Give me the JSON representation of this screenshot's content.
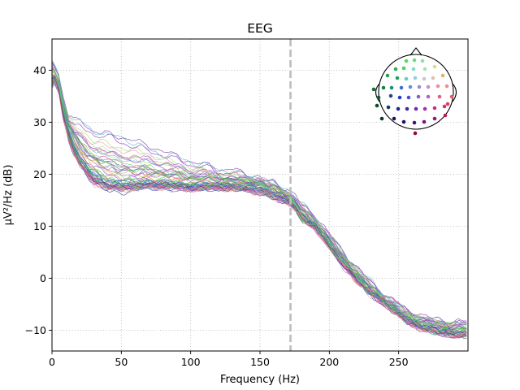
{
  "chart_data": {
    "type": "line",
    "title": "EEG",
    "xlabel": "Frequency (Hz)",
    "ylabel": "µV²/Hz (dB)",
    "xlim": [
      0,
      300
    ],
    "ylim": [
      -14,
      46
    ],
    "xticks": [
      0,
      50,
      100,
      150,
      200,
      250
    ],
    "yticks": [
      -10,
      0,
      10,
      20,
      30,
      40
    ],
    "grid": true,
    "grid_style": "dotted",
    "vline": {
      "x": 172,
      "style": "dashed",
      "color": "#bdbdbd"
    },
    "legend": "sensor-location inset at top-right",
    "reference_points": {
      "x": [
        0,
        2,
        5,
        8,
        12,
        16,
        20,
        25,
        30,
        40,
        50,
        60,
        70,
        80,
        90,
        100,
        110,
        120,
        130,
        140,
        150,
        160,
        165,
        170,
        175,
        180,
        190,
        200,
        210,
        220,
        230,
        240,
        250,
        260,
        270,
        280,
        290,
        299
      ],
      "low": [
        37,
        38,
        36,
        31,
        27,
        24,
        22,
        20,
        18.5,
        17.2,
        17,
        17.2,
        17.5,
        17.4,
        17.3,
        17,
        17.2,
        17.3,
        17.3,
        16.9,
        16.6,
        15.6,
        15,
        14.6,
        13.4,
        11.5,
        9.5,
        6,
        2.5,
        -0.5,
        -3,
        -5,
        -7,
        -9,
        -10,
        -10.5,
        -11,
        -11
      ],
      "mid": [
        39,
        39,
        37,
        33,
        29,
        26.5,
        24,
        22.5,
        21.5,
        20,
        19.5,
        19.2,
        19.3,
        19,
        18.8,
        18.5,
        18.6,
        18.4,
        18.5,
        18.4,
        18.2,
        17,
        16.2,
        15.6,
        14.2,
        12.5,
        10.2,
        7,
        3.5,
        0.5,
        -2.2,
        -4.6,
        -6.4,
        -8.1,
        -9,
        -9.5,
        -9.8,
        -10
      ],
      "high": [
        42,
        41,
        39,
        35,
        31,
        30,
        30.5,
        29.5,
        28.5,
        28,
        27.5,
        26.5,
        25.5,
        24.5,
        23.5,
        22.5,
        22,
        21,
        20.5,
        19.8,
        19.3,
        18.3,
        17.5,
        17,
        16,
        14,
        12,
        8.5,
        5,
        2,
        -0.8,
        -3,
        -5,
        -6.5,
        -7.6,
        -8.2,
        -8.4,
        -8.5
      ]
    },
    "n_channels": 60
  }
}
